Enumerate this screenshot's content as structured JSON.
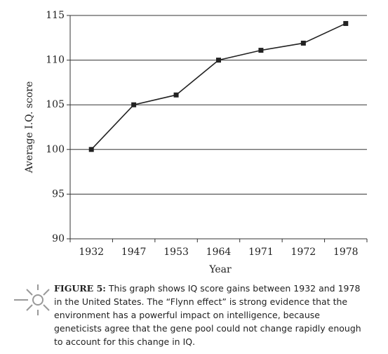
{
  "chart_data": {
    "type": "line",
    "x_label": "Year",
    "y_label": "Average I.Q. score",
    "categories": [
      "1932",
      "1947",
      "1953",
      "1964",
      "1971",
      "1972",
      "1978"
    ],
    "values": [
      100,
      105,
      106.1,
      110,
      111.1,
      111.9,
      114.1
    ],
    "color": "#222222",
    "ylim": [
      90,
      115
    ],
    "yticks": [
      90,
      95,
      100,
      105,
      110,
      115
    ],
    "grid": true
  },
  "caption": {
    "label": "FIGURE 5:",
    "text": "This graph shows IQ score gains between 1932 and 1978 in the United States. The “Flynn effect” is strong evidence that the environment has a powerful impact on intelligence, because geneticists agree that the gene pool could not change rapidly enough to account for this change in IQ."
  }
}
